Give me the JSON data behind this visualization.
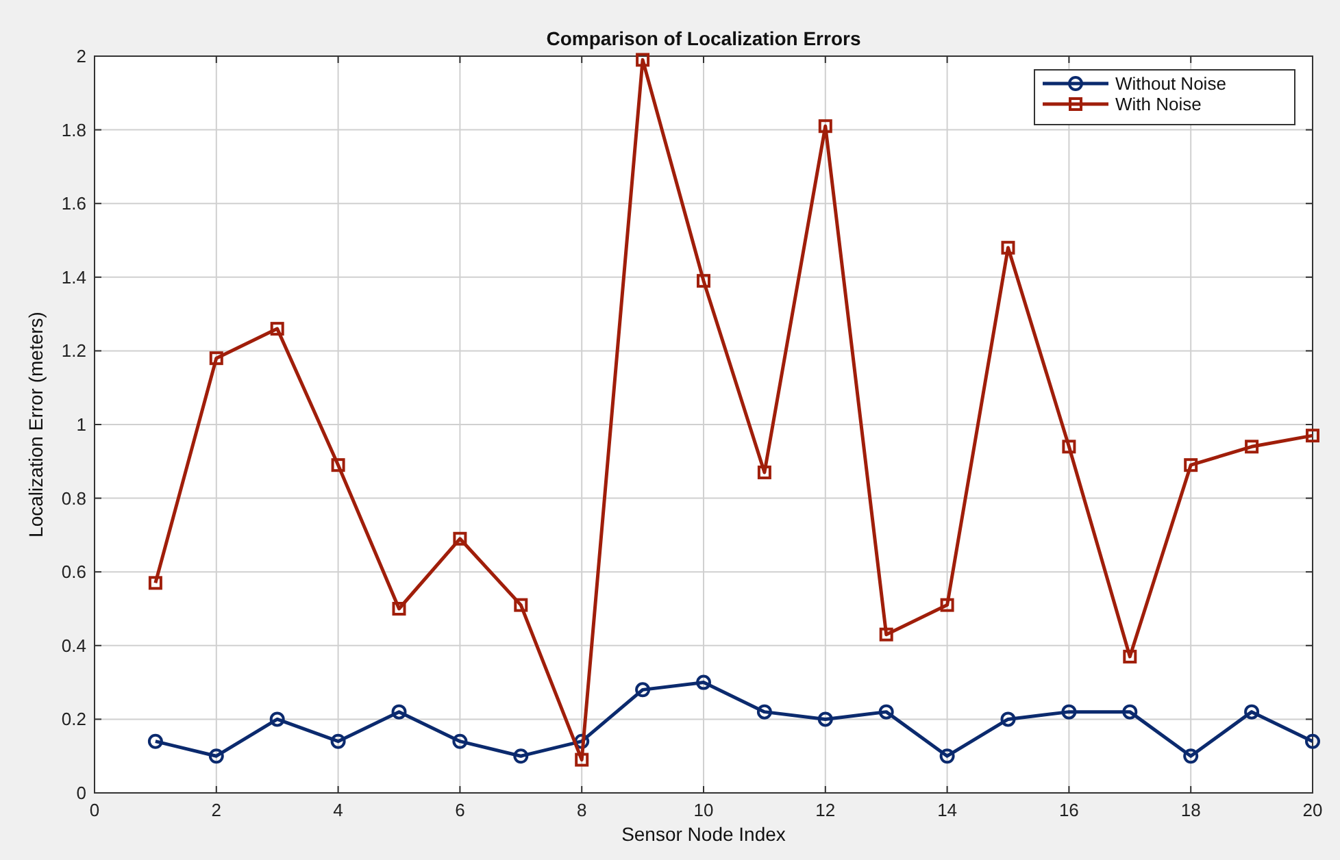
{
  "chart_data": {
    "type": "line",
    "title": "Comparison of Localization Errors",
    "xlabel": "Sensor Node Index",
    "ylabel": "Localization Error (meters)",
    "x": [
      1,
      2,
      3,
      4,
      5,
      6,
      7,
      8,
      9,
      10,
      11,
      12,
      13,
      14,
      15,
      16,
      17,
      18,
      19,
      20
    ],
    "series": [
      {
        "name": "Without Noise",
        "color": "#0b2a6e",
        "marker": "circle",
        "values": [
          0.14,
          0.1,
          0.2,
          0.14,
          0.22,
          0.14,
          0.1,
          0.14,
          0.28,
          0.3,
          0.22,
          0.2,
          0.22,
          0.1,
          0.2,
          0.22,
          0.22,
          0.1,
          0.22,
          0.14
        ]
      },
      {
        "name": "With Noise",
        "color": "#a01e0a",
        "marker": "square",
        "values": [
          0.57,
          1.18,
          1.26,
          0.89,
          0.5,
          0.69,
          0.51,
          0.09,
          1.99,
          1.39,
          0.87,
          1.81,
          0.43,
          0.51,
          1.48,
          0.94,
          0.37,
          0.89,
          0.94,
          0.97
        ]
      }
    ],
    "xlim": [
      0,
      20
    ],
    "xticks": [
      0,
      2,
      4,
      6,
      8,
      10,
      12,
      14,
      16,
      18,
      20
    ],
    "ylim": [
      0,
      2
    ],
    "yticks": [
      0,
      0.2,
      0.4,
      0.6,
      0.8,
      1,
      1.2,
      1.4,
      1.6,
      1.8,
      2
    ],
    "grid": true,
    "legend": "top right",
    "line_style": "solid"
  }
}
